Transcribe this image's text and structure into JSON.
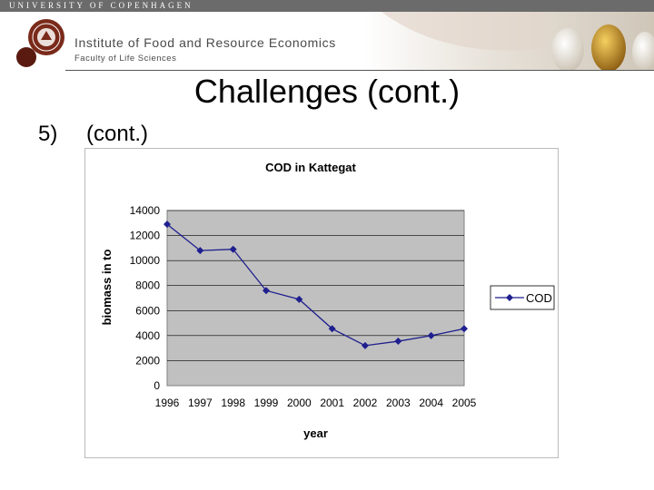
{
  "header": {
    "university": "UNIVERSITY OF COPENHAGEN",
    "institute": "Institute of Food and Resource Economics",
    "faculty": "Faculty of Life Sciences"
  },
  "slide": {
    "title": "Challenges (cont.)",
    "bullet_number": "5)",
    "bullet_text": "(cont.)"
  },
  "colors": {
    "series": "#1f1f8f",
    "plot_bg": "#c0c0c0"
  },
  "chart_data": {
    "type": "line",
    "title": "COD in Kattegat",
    "xlabel": "year",
    "ylabel": "biomass in to",
    "x": [
      "1996",
      "1997",
      "1998",
      "1999",
      "2000",
      "2001",
      "2002",
      "2003",
      "2004",
      "2005"
    ],
    "series": [
      {
        "name": "COD",
        "values": [
          12900,
          10800,
          10900,
          7600,
          6900,
          4550,
          3200,
          3550,
          4000,
          4550
        ]
      }
    ],
    "yticks": [
      0,
      2000,
      4000,
      6000,
      8000,
      10000,
      12000,
      14000
    ],
    "ylim": [
      0,
      14000
    ],
    "grid": true,
    "legend": "right"
  }
}
